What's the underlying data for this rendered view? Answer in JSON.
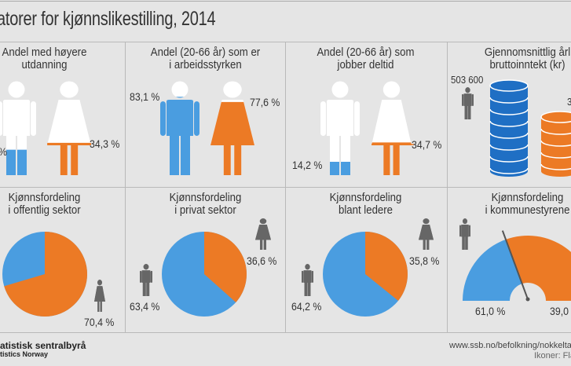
{
  "title": "atorer for kjønnslikestilling, 2014",
  "colors": {
    "male": "#4a9de0",
    "female": "#ec7a25",
    "income_male": "#1f6fc4",
    "icon_grey": "#666666",
    "background": "#e5e5e5"
  },
  "row1": [
    {
      "title": [
        "Andel med høyere",
        "utdanning"
      ],
      "male": {
        "label": "%",
        "fill": 0.27
      },
      "female": {
        "label": "34,3 %",
        "fill": 0.343
      }
    },
    {
      "title": [
        "Andel (20-66 år) som er",
        "i arbeidsstyrken"
      ],
      "male": {
        "label": "83,1 %",
        "fill": 0.831
      },
      "female": {
        "label": "77,6 %",
        "fill": 0.776
      }
    },
    {
      "title": [
        "Andel (20-66 år) som",
        "jobber deltid"
      ],
      "male": {
        "label": "14,2 %",
        "fill": 0.142
      },
      "female": {
        "label": "34,7 %",
        "fill": 0.347
      }
    },
    {
      "title": [
        "Gjennomsnittlig årl",
        "bruttoinntekt (kr)"
      ],
      "male": {
        "label": "503 600",
        "value": 503600
      },
      "female": {
        "label": "3"
      }
    }
  ],
  "row2": [
    {
      "title": [
        "Kjønnsfordeling",
        "i offentlig sektor"
      ],
      "female_pct": 70.4,
      "female_label": "70,4 %"
    },
    {
      "title": [
        "Kjønnsfordeling",
        "i privat sektor"
      ],
      "female_pct": 36.6,
      "female_label": "36,6 %",
      "male_label": "63,4 %"
    },
    {
      "title": [
        "Kjønnsfordeling",
        "blant ledere"
      ],
      "female_pct": 35.8,
      "female_label": "35,8 %",
      "male_label": "64,2 %"
    },
    {
      "title": [
        "Kjønnsfordeling",
        "i kommunestyrene"
      ],
      "female_pct": 39.0,
      "male_label": "61,0 %",
      "female_label": "39,0"
    }
  ],
  "footer": {
    "org": "atistisk sentralbyrå",
    "org_en": "tistics Norway",
    "url": "www.ssb.no/befolkning/nokkeltall",
    "icons": "Ikoner: Fla"
  },
  "icons": [
    "male-figure-icon",
    "female-figure-icon",
    "coin-stack-icon"
  ]
}
